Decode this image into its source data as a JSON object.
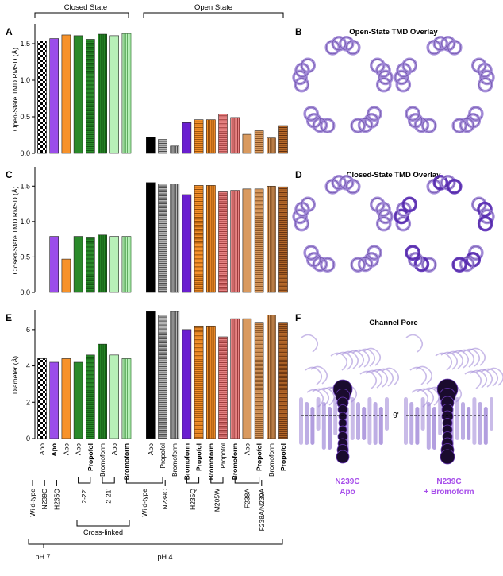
{
  "panel_letters": {
    "a": "A",
    "b": "B",
    "c": "C",
    "d": "D",
    "e": "E",
    "f": "F"
  },
  "state_groups": {
    "closed": "Closed State",
    "open": "Open State"
  },
  "panel_b": {
    "title": "Open-State TMD Overlay"
  },
  "panel_d": {
    "title": "Closed-State TMD Overlay"
  },
  "panel_f": {
    "title": "Channel Pore",
    "level_label": "9'",
    "left_caption": [
      "N239C",
      "Apo"
    ],
    "right_caption": [
      "N239C",
      "+ Bromoform"
    ]
  },
  "ph_labels": {
    "ph7": "pH 7",
    "ph4": "pH 4"
  },
  "crosslinked_label": "Cross-linked",
  "construct_labels": [
    {
      "text": "Wild-type",
      "from": 0,
      "to": 0
    },
    {
      "text": "N239C",
      "from": 1,
      "to": 1
    },
    {
      "text": "H235Q",
      "from": 2,
      "to": 2
    },
    {
      "text": "2-22'",
      "from": 3,
      "to": 4
    },
    {
      "text": "2-21'",
      "from": 5,
      "to": 6
    },
    {
      "text": "Wild-type",
      "from": 7,
      "to": 9
    },
    {
      "text": "N239C",
      "from": 10,
      "to": 10
    },
    {
      "text": "H235Q",
      "from": 11,
      "to": 12
    },
    {
      "text": "M205W",
      "from": 13,
      "to": 14
    },
    {
      "text": "F238A",
      "from": 15,
      "to": 17
    },
    {
      "text": "F238A/N239A",
      "from": 18,
      "to": 18
    }
  ],
  "condition_labels": [
    {
      "text": "Apo",
      "bold": false
    },
    {
      "text": "Apo",
      "bold": true
    },
    {
      "text": "Apo",
      "bold": false
    },
    {
      "text": "Apo",
      "bold": false
    },
    {
      "text": "Propofol",
      "bold": true
    },
    {
      "text": "Bromoform",
      "bold": false
    },
    {
      "text": "Apo",
      "bold": false
    },
    {
      "text": "Bromoform",
      "bold": true
    },
    {
      "text": "Apo",
      "bold": false
    },
    {
      "text": "Propofol",
      "bold": false
    },
    {
      "text": "Bromoform",
      "bold": false
    },
    {
      "text": "Bromoform",
      "bold": true
    },
    {
      "text": "Propofol",
      "bold": true
    },
    {
      "text": "Bromoform",
      "bold": true
    },
    {
      "text": "Propofol",
      "bold": false
    },
    {
      "text": "Bromoform",
      "bold": true
    },
    {
      "text": "Apo",
      "bold": false
    },
    {
      "text": "Propofol",
      "bold": true
    },
    {
      "text": "Bromoform",
      "bold": false
    },
    {
      "text": "Propofol",
      "bold": true
    }
  ],
  "colors": {
    "wildtype": "#000000",
    "n239c": "#9b4dea",
    "h235q": "#f7922a",
    "m205w": "#e88484",
    "f238a": "#d99a5f",
    "f238a_n239a": "#8b4513",
    "crosslink_2_22": "#2a8a2a",
    "crosslink_2_21": "#b8f0b8",
    "molecule": "#9d84d6",
    "molecule_dark": "#5a2ab8",
    "pore_sphere": "#1a0b2e"
  },
  "chart_data": [
    {
      "type": "bar",
      "panel": "A",
      "ylabel": "Open-State TMD RMSD (Å)",
      "ylim": [
        0,
        1.75
      ],
      "yticks": [
        "0.0",
        "0.5",
        "1.0",
        "1.5"
      ],
      "ytick_values": [
        0,
        0.5,
        1.0,
        1.5
      ],
      "values": [
        1.54,
        1.57,
        1.62,
        1.61,
        1.56,
        1.63,
        1.61,
        1.64,
        null,
        0.22,
        0.19,
        0.1,
        0.42,
        0.46,
        0.46,
        0.54,
        0.49,
        0.26,
        0.31,
        0.21,
        0.38
      ]
    },
    {
      "type": "bar",
      "panel": "C",
      "ylabel": "Closed-State TMD RMSD (Å)",
      "ylim": [
        0,
        1.75
      ],
      "yticks": [
        "0.0",
        "0.5",
        "1.0",
        "1.5"
      ],
      "ytick_values": [
        0,
        0.5,
        1.0,
        1.5
      ],
      "values": [
        null,
        0.79,
        0.47,
        0.79,
        0.78,
        0.81,
        0.79,
        0.79,
        null,
        1.55,
        1.53,
        1.53,
        1.38,
        1.51,
        1.51,
        1.42,
        1.44,
        1.46,
        1.46,
        1.5,
        1.49
      ]
    },
    {
      "type": "bar",
      "panel": "E",
      "ylabel": "Diameter (Å)",
      "ylim": [
        0,
        7
      ],
      "yticks": [
        "0",
        "2",
        "4",
        "6"
      ],
      "ytick_values": [
        0,
        2,
        4,
        6
      ],
      "values": [
        4.4,
        4.2,
        4.4,
        4.2,
        4.6,
        5.2,
        4.6,
        4.4,
        null,
        7.0,
        6.8,
        7.0,
        6.0,
        6.2,
        6.2,
        5.6,
        6.6,
        6.6,
        6.4,
        6.8,
        6.4
      ]
    }
  ]
}
